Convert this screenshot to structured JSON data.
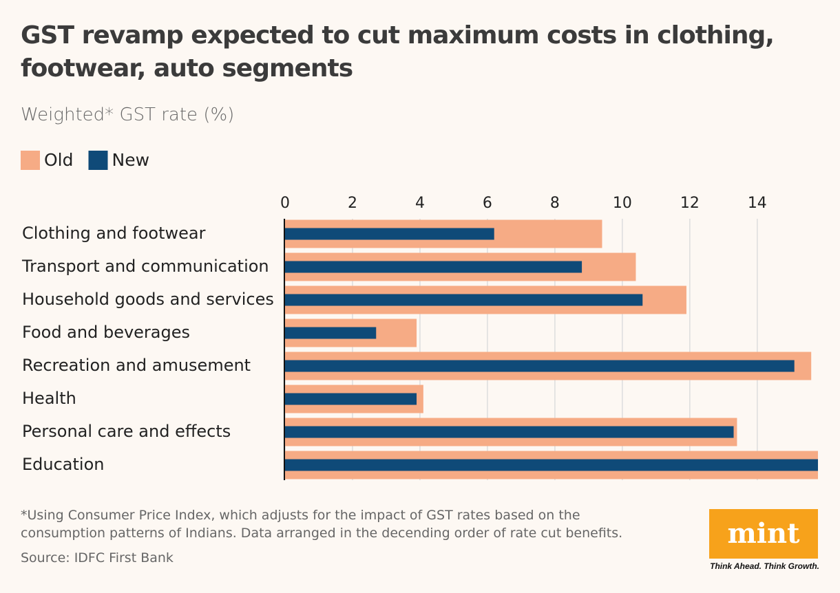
{
  "chart_data": {
    "type": "hbar",
    "title": "GST revamp expected to cut maximum costs in clothing, footwear, auto segments",
    "subtitle": "Weighted* GST rate (%)",
    "categories": [
      "Clothing and footwear",
      "Transport and communication",
      "Household goods and services",
      "Food and beverages",
      "Recreation and amusement",
      "Health",
      "Personal care and effects",
      "Education"
    ],
    "series": [
      {
        "name": "Old",
        "color": "#f6ab85",
        "values": [
          9.4,
          10.4,
          11.9,
          3.9,
          15.6,
          4.1,
          13.4,
          15.8
        ]
      },
      {
        "name": "New",
        "color": "#0f4a78",
        "values": [
          6.2,
          8.8,
          10.6,
          2.7,
          15.1,
          3.9,
          13.3,
          15.8
        ]
      }
    ],
    "xlim": [
      0,
      15.8
    ],
    "xticks": [
      0,
      2,
      4,
      6,
      8,
      10,
      12,
      14
    ],
    "grid": true,
    "footnote": "*Using Consumer Price Index, which adjusts for the impact of GST rates based on the consumption patterns of Indians. Data arranged in the decending order of rate cut benefits.",
    "source": "Source: IDFC First Bank",
    "logo": "mint",
    "tagline": "Think Ahead. Think Growth."
  }
}
